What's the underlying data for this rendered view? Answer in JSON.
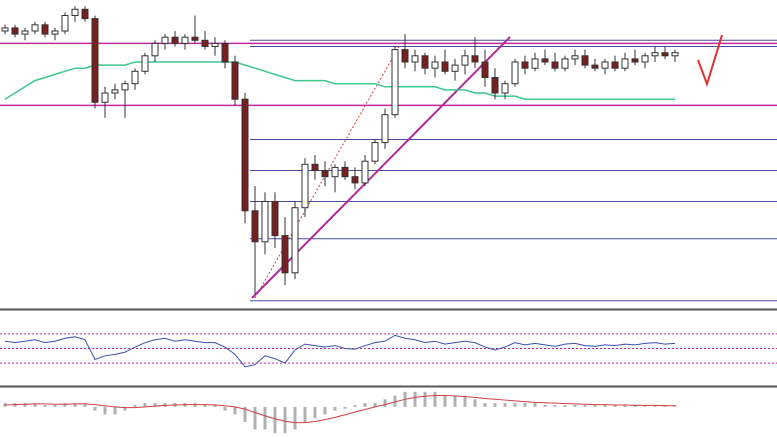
{
  "chart_data": [
    {
      "type": "candlestick",
      "ylim": [
        0,
        100
      ],
      "up_color": "#ffffff",
      "down_color": "#7a1f1f",
      "wick_color": "#333333",
      "candles": [
        [
          90,
          92,
          89,
          91
        ],
        [
          91,
          92,
          88,
          89
        ],
        [
          89,
          91,
          87,
          90
        ],
        [
          90,
          93,
          89,
          92
        ],
        [
          92,
          93,
          88,
          89
        ],
        [
          89,
          91,
          87,
          90
        ],
        [
          90,
          96,
          89,
          95
        ],
        [
          95,
          98,
          93,
          97
        ],
        [
          97,
          98,
          93,
          94
        ],
        [
          94,
          95,
          65,
          67
        ],
        [
          67,
          72,
          62,
          70
        ],
        [
          70,
          73,
          68,
          71
        ],
        [
          71,
          74,
          62,
          73
        ],
        [
          73,
          78,
          71,
          77
        ],
        [
          77,
          83,
          76,
          82
        ],
        [
          82,
          87,
          80,
          86
        ],
        [
          86,
          89,
          84,
          88
        ],
        [
          88,
          90,
          85,
          86
        ],
        [
          86,
          89,
          84,
          88
        ],
        [
          88,
          95,
          86,
          87
        ],
        [
          87,
          90,
          84,
          85
        ],
        [
          85,
          88,
          82,
          86
        ],
        [
          86,
          87,
          78,
          80
        ],
        [
          80,
          82,
          66,
          68
        ],
        [
          68,
          70,
          28,
          32
        ],
        [
          32,
          40,
          5,
          22
        ],
        [
          22,
          38,
          18,
          35
        ],
        [
          35,
          38,
          20,
          24
        ],
        [
          24,
          30,
          8,
          12
        ],
        [
          12,
          35,
          10,
          33
        ],
        [
          33,
          49,
          30,
          47
        ],
        [
          47,
          50,
          42,
          45
        ],
        [
          45,
          48,
          40,
          43
        ],
        [
          43,
          47,
          38,
          46
        ],
        [
          46,
          48,
          42,
          43
        ],
        [
          43,
          46,
          39,
          41
        ],
        [
          41,
          50,
          40,
          48
        ],
        [
          48,
          55,
          47,
          54
        ],
        [
          54,
          65,
          52,
          63
        ],
        [
          63,
          85,
          62,
          84
        ],
        [
          84,
          89,
          78,
          80
        ],
        [
          80,
          84,
          77,
          82
        ],
        [
          82,
          83,
          76,
          78
        ],
        [
          78,
          82,
          75,
          80
        ],
        [
          80,
          84,
          76,
          77
        ],
        [
          77,
          81,
          74,
          79
        ],
        [
          79,
          84,
          76,
          82
        ],
        [
          82,
          88,
          78,
          80
        ],
        [
          80,
          84,
          72,
          75
        ],
        [
          75,
          78,
          68,
          70
        ],
        [
          70,
          74,
          68,
          73
        ],
        [
          73,
          81,
          72,
          80
        ],
        [
          80,
          82,
          76,
          78
        ],
        [
          78,
          83,
          77,
          81
        ],
        [
          81,
          84,
          79,
          80
        ],
        [
          80,
          83,
          77,
          78
        ],
        [
          78,
          82,
          77,
          81
        ],
        [
          81,
          84,
          79,
          82
        ],
        [
          82,
          84,
          78,
          79
        ],
        [
          79,
          81,
          77,
          78
        ],
        [
          78,
          81,
          76,
          80
        ],
        [
          80,
          82,
          77,
          78
        ],
        [
          78,
          83,
          77,
          81
        ],
        [
          81,
          84,
          79,
          80
        ],
        [
          80,
          83,
          78,
          82
        ],
        [
          82,
          85,
          80,
          83
        ],
        [
          83,
          85,
          81,
          82
        ],
        [
          82,
          84,
          80,
          83
        ]
      ],
      "ma": {
        "color": "#3cc88c",
        "values": [
          68,
          70,
          72,
          74,
          75,
          76,
          77,
          78,
          78,
          79,
          79,
          79,
          79,
          80,
          80,
          80,
          80,
          80,
          80,
          80,
          80,
          80,
          80,
          80,
          79,
          78,
          77,
          76,
          75,
          74,
          74,
          74,
          74,
          73,
          73,
          73,
          73,
          73,
          72,
          72,
          72,
          72,
          72,
          72,
          71,
          71,
          71,
          70,
          70,
          69,
          69,
          69,
          68,
          68,
          68,
          68,
          68,
          68,
          68,
          68,
          68,
          68,
          68,
          68,
          68,
          68,
          68,
          68
        ]
      },
      "levels": {
        "color": "#c02a9c",
        "values": [
          86,
          66
        ]
      },
      "fib_levels": {
        "color": "#4a4a9a",
        "values": [
          87,
          85,
          66,
          55,
          45,
          35,
          23,
          3
        ]
      }
    },
    {
      "type": "line",
      "ylim": [
        0,
        100
      ],
      "color": "#3a4fb0",
      "ref_color": "#c02a9c",
      "ref_levels": [
        70,
        50,
        30
      ],
      "values": [
        60,
        58,
        60,
        62,
        58,
        60,
        64,
        66,
        62,
        35,
        40,
        42,
        45,
        52,
        58,
        62,
        64,
        60,
        62,
        60,
        58,
        58,
        52,
        42,
        25,
        28,
        40,
        36,
        30,
        48,
        56,
        54,
        52,
        54,
        50,
        49,
        54,
        58,
        60,
        68,
        64,
        62,
        58,
        60,
        56,
        58,
        60,
        58,
        52,
        48,
        52,
        58,
        55,
        57,
        55,
        53,
        56,
        57,
        54,
        53,
        55,
        54,
        56,
        55,
        57,
        58,
        56,
        57
      ]
    },
    {
      "type": "bar",
      "ylim": [
        -8,
        5
      ],
      "color": "#b0b0b0",
      "values": [
        1,
        1,
        1,
        1,
        0.5,
        0.5,
        1,
        1,
        1,
        -1,
        -2,
        -2,
        -1,
        0.5,
        1,
        1,
        1,
        1,
        1,
        1,
        0.5,
        0.5,
        -1,
        -2,
        -4,
        -6,
        -6,
        -7,
        -7,
        -6,
        -4,
        -3,
        -2,
        -1,
        -0.5,
        0.5,
        1,
        1,
        2,
        3,
        4,
        4,
        4,
        4,
        3,
        3,
        3,
        2,
        1,
        1,
        1,
        1,
        1,
        1,
        0.5,
        0.5,
        0.5,
        0.5,
        0.5,
        0.5,
        0.5,
        0.5,
        0.5,
        0.5,
        0.5,
        0.5,
        0.5,
        0.5
      ],
      "signal": {
        "color": "#d04040",
        "values": [
          0.5,
          0.6,
          0.7,
          0.8,
          0.8,
          0.7,
          0.7,
          0.8,
          0.8,
          0.6,
          0.3,
          0,
          -0.2,
          -0.2,
          0,
          0.2,
          0.4,
          0.5,
          0.6,
          0.6,
          0.6,
          0.5,
          0.3,
          0,
          -0.6,
          -1.5,
          -2.4,
          -3.2,
          -3.8,
          -4.2,
          -4.2,
          -3.9,
          -3.4,
          -2.8,
          -2.1,
          -1.4,
          -0.7,
          0,
          0.6,
          1.3,
          2,
          2.5,
          2.8,
          3,
          3,
          2.9,
          2.7,
          2.5,
          2.2,
          2,
          1.8,
          1.6,
          1.4,
          1.2,
          1.1,
          1,
          0.9,
          0.8,
          0.7,
          0.6,
          0.6,
          0.5,
          0.5,
          0.4,
          0.4,
          0.4,
          0.3,
          0.3
        ]
      }
    }
  ]
}
